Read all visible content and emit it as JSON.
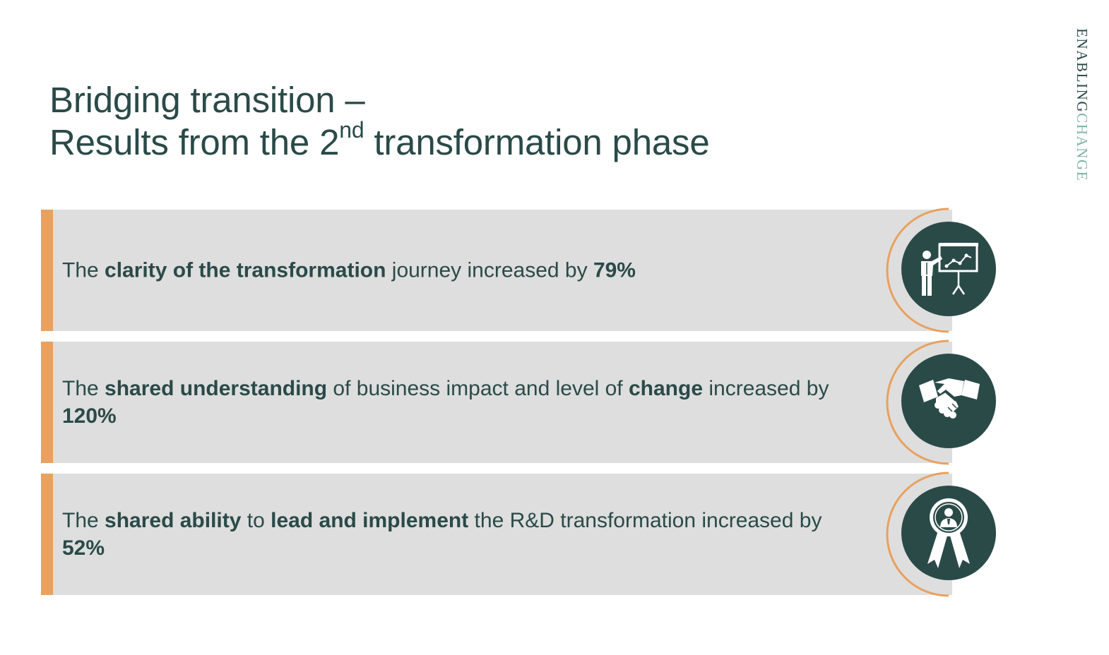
{
  "title": {
    "line1": "Bridging transition –",
    "line2_pre": "Results from the 2",
    "line2_sup": "nd",
    "line2_post": " transformation phase"
  },
  "brand": {
    "part1": "ENABLING",
    "part2": "CHANGE"
  },
  "colors": {
    "accent": "#e8a160",
    "dark": "#2a4a48",
    "panel": "#dedede",
    "brand_light": "#7fb3a6"
  },
  "results": [
    {
      "segments": [
        {
          "text": "The ",
          "bold": false
        },
        {
          "text": "clarity of the transformation",
          "bold": true
        },
        {
          "text": " journey increased by ",
          "bold": false
        },
        {
          "text": "79%",
          "bold": true
        }
      ],
      "icon": "presentation-icon"
    },
    {
      "segments": [
        {
          "text": "The ",
          "bold": false
        },
        {
          "text": "shared understanding",
          "bold": true
        },
        {
          "text": " of business impact and level of ",
          "bold": false
        },
        {
          "text": "change",
          "bold": true
        },
        {
          "text": " increased by ",
          "bold": false
        },
        {
          "text": "120%",
          "bold": true
        }
      ],
      "icon": "handshake-icon"
    },
    {
      "segments": [
        {
          "text": "The ",
          "bold": false
        },
        {
          "text": "shared ability",
          "bold": true
        },
        {
          "text": " to ",
          "bold": false
        },
        {
          "text": "lead and implement",
          "bold": true
        },
        {
          "text": " the R&D transformation increased by ",
          "bold": false
        },
        {
          "text": "52%",
          "bold": true
        }
      ],
      "icon": "award-ribbon-icon"
    }
  ]
}
